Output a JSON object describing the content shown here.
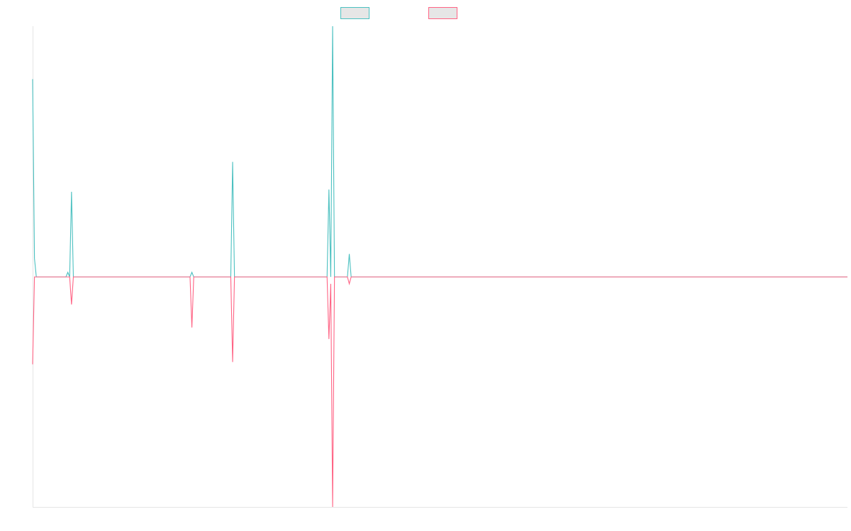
{
  "chart_data": {
    "type": "line",
    "title": "",
    "xlabel": "",
    "ylabel": "",
    "grid": false,
    "legend_position": "top-center",
    "ylim": [
      -1,
      1.09
    ],
    "series": [
      {
        "color": "#4bc0c0",
        "points": [
          [
            0,
            0.86
          ],
          [
            1,
            0.08
          ],
          [
            2,
            0
          ],
          [
            3,
            0
          ],
          [
            18,
            0
          ],
          [
            19,
            0.02
          ],
          [
            20,
            0
          ],
          [
            21,
            0.37
          ],
          [
            22,
            0
          ],
          [
            23,
            0
          ],
          [
            85,
            0
          ],
          [
            86,
            0.02
          ],
          [
            87,
            0
          ],
          [
            88,
            0
          ],
          [
            107,
            0
          ],
          [
            108,
            0.5
          ],
          [
            109,
            0
          ],
          [
            110,
            0
          ],
          [
            159,
            0
          ],
          [
            160,
            0.38
          ],
          [
            161,
            0
          ],
          [
            162,
            1.09
          ],
          [
            163,
            0
          ],
          [
            164,
            0
          ],
          [
            170,
            0
          ],
          [
            171,
            0.1
          ],
          [
            172,
            0
          ],
          [
            173,
            0
          ],
          [
            440,
            0
          ]
        ]
      },
      {
        "color": "#ff6384",
        "points": [
          [
            0,
            -0.38
          ],
          [
            1,
            0
          ],
          [
            2,
            0
          ],
          [
            3,
            0
          ],
          [
            20,
            0
          ],
          [
            21,
            -0.12
          ],
          [
            22,
            0
          ],
          [
            23,
            0
          ],
          [
            85,
            0
          ],
          [
            86,
            -0.22
          ],
          [
            87,
            0
          ],
          [
            88,
            0
          ],
          [
            107,
            0
          ],
          [
            108,
            -0.37
          ],
          [
            109,
            0
          ],
          [
            110,
            0
          ],
          [
            159,
            0
          ],
          [
            160,
            -0.27
          ],
          [
            161,
            -0.03
          ],
          [
            162,
            -1.0
          ],
          [
            163,
            0
          ],
          [
            164,
            0
          ],
          [
            170,
            0
          ],
          [
            171,
            -0.03
          ],
          [
            172,
            0
          ],
          [
            173,
            0
          ],
          [
            440,
            0
          ]
        ]
      }
    ]
  }
}
